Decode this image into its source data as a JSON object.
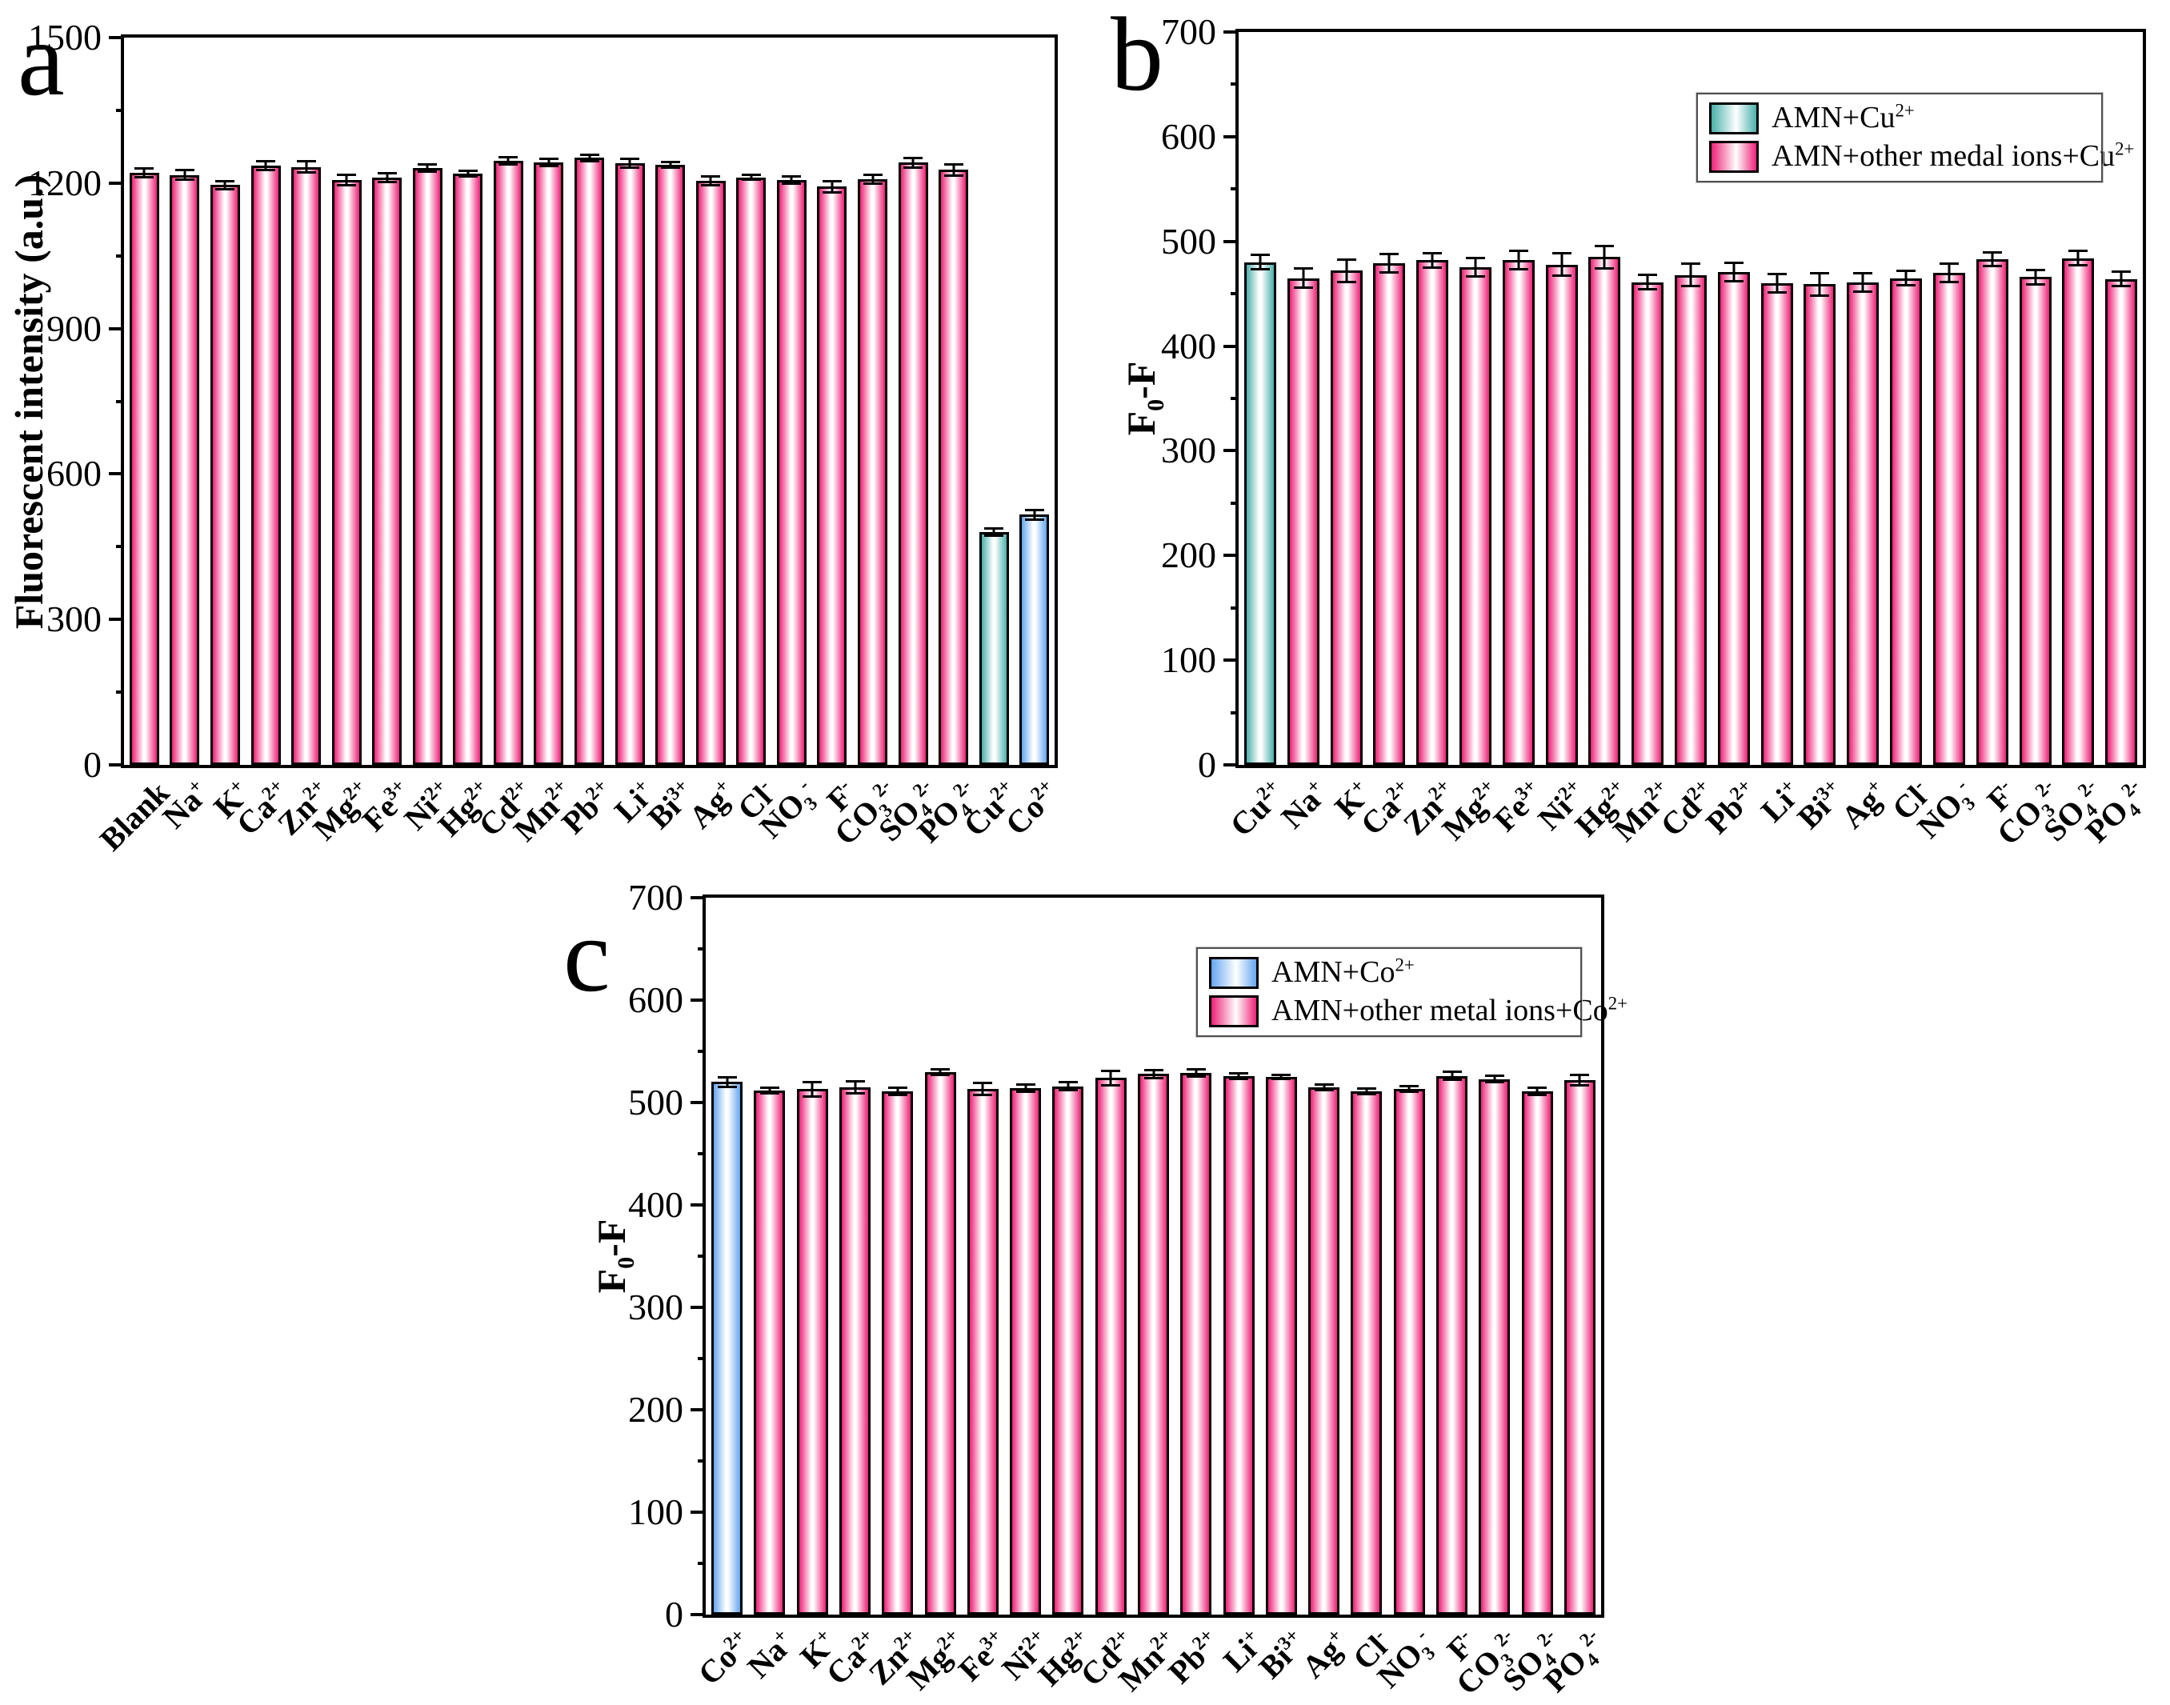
{
  "palette": {
    "pink": "#EE2277",
    "teal": "#4AB0AB",
    "blue": "#64A6F0",
    "axis": "#000000",
    "background": "#FFFFFF"
  },
  "chart_data": [
    {
      "type": "bar",
      "panel": "a",
      "title": "",
      "xlabel": "",
      "ylabel": "Fluorescent intensity (a.u.)",
      "ylim": [
        0,
        1500
      ],
      "ytick_step": 300,
      "yminor_step": 150,
      "grid": false,
      "legend": null,
      "categories": [
        "Blank",
        "Na^+",
        "K^+",
        "Ca^2+",
        "Zn^2+",
        "Mg^2+",
        "Fe^3+",
        "Ni^2+",
        "Hg^2+",
        "Cd^2+",
        "Mn^2+",
        "Pb^2+",
        "Li^+",
        "Bi^3+",
        "Ag^+",
        "Cl^-",
        "NO_3^-",
        "F^-",
        "CO_3^2-",
        "SO_4^2-",
        "PO_4^2-",
        "Cu^2+",
        "Co^2+"
      ],
      "values": [
        1221,
        1217,
        1196,
        1236,
        1233,
        1206,
        1211,
        1231,
        1219,
        1246,
        1243,
        1252,
        1241,
        1238,
        1205,
        1212,
        1206,
        1193,
        1208,
        1242,
        1227,
        480,
        516
      ],
      "errors": [
        12,
        13,
        11,
        12,
        14,
        13,
        12,
        10,
        8,
        10,
        10,
        9,
        12,
        8,
        12,
        8,
        10,
        14,
        12,
        12,
        14,
        10,
        12
      ],
      "bar_colors": [
        "pink",
        "pink",
        "pink",
        "pink",
        "pink",
        "pink",
        "pink",
        "pink",
        "pink",
        "pink",
        "pink",
        "pink",
        "pink",
        "pink",
        "pink",
        "pink",
        "pink",
        "pink",
        "pink",
        "pink",
        "pink",
        "teal",
        "blue"
      ]
    },
    {
      "type": "bar",
      "panel": "b",
      "title": "",
      "xlabel": "",
      "ylabel": "F_0-F",
      "ylim": [
        0,
        700
      ],
      "ytick_step": 100,
      "yminor_step": 50,
      "grid": false,
      "legend": {
        "position": "upper-right",
        "items": [
          {
            "label": "AMN+Cu^2+",
            "color": "teal"
          },
          {
            "label": "AMN+other medal ions+Cu^2+",
            "color": "pink"
          }
        ]
      },
      "categories": [
        "Cu^2+",
        "Na^+",
        "K^+",
        "Ca^2+",
        "Zn^2+",
        "Mg^2+",
        "Fe^3+",
        "Ni^2+",
        "Hg^2+",
        "Mn^2+",
        "Cd^2+",
        "Pb^2+",
        "Li^+",
        "Bi^3+",
        "Ag^+",
        "Cl^-",
        "NO_3^-",
        "F^-",
        "CO_3^2-",
        "SO_4^2-",
        "PO_4^2-"
      ],
      "values": [
        480,
        465,
        472,
        479,
        482,
        475,
        482,
        478,
        485,
        461,
        468,
        471,
        460,
        459,
        461,
        465,
        470,
        483,
        466,
        484,
        464
      ],
      "errors": [
        8,
        10,
        12,
        10,
        8,
        10,
        10,
        12,
        12,
        8,
        12,
        10,
        10,
        12,
        10,
        8,
        10,
        8,
        8,
        8,
        8
      ],
      "bar_colors": [
        "teal",
        "pink",
        "pink",
        "pink",
        "pink",
        "pink",
        "pink",
        "pink",
        "pink",
        "pink",
        "pink",
        "pink",
        "pink",
        "pink",
        "pink",
        "pink",
        "pink",
        "pink",
        "pink",
        "pink",
        "pink"
      ]
    },
    {
      "type": "bar",
      "panel": "c",
      "title": "",
      "xlabel": "",
      "ylabel": "F_0-F",
      "ylim": [
        0,
        700
      ],
      "ytick_step": 100,
      "yminor_step": 50,
      "grid": false,
      "legend": {
        "position": "upper-right",
        "items": [
          {
            "label": "AMN+Co^2+",
            "color": "blue"
          },
          {
            "label": "AMN+other metal ions+Co^2+",
            "color": "pink"
          }
        ]
      },
      "categories": [
        "Co^2+",
        "Na^+",
        "K^+",
        "Ca^2+",
        "Zn^2+",
        "Mg^2+",
        "Fe^3+",
        "Ni^2+",
        "Hg^2+",
        "Cd^2+",
        "Mn^2+",
        "Pb^2+",
        "Li^+",
        "Bi^3+",
        "Ag^+",
        "Cl^-",
        "NO_3^-",
        "F^-",
        "CO_3^2-",
        "SO_4^2-",
        "PO_4^2-"
      ],
      "values": [
        520,
        512,
        513,
        515,
        511,
        530,
        513,
        514,
        516,
        524,
        528,
        529,
        526,
        525,
        515,
        511,
        513,
        526,
        523,
        511,
        522
      ],
      "errors": [
        6,
        4,
        8,
        7,
        5,
        4,
        7,
        5,
        5,
        8,
        5,
        5,
        4,
        3,
        4,
        4,
        4,
        5,
        4,
        5,
        6
      ],
      "bar_colors": [
        "blue",
        "pink",
        "pink",
        "pink",
        "pink",
        "pink",
        "pink",
        "pink",
        "pink",
        "pink",
        "pink",
        "pink",
        "pink",
        "pink",
        "pink",
        "pink",
        "pink",
        "pink",
        "pink",
        "pink",
        "pink"
      ]
    }
  ]
}
